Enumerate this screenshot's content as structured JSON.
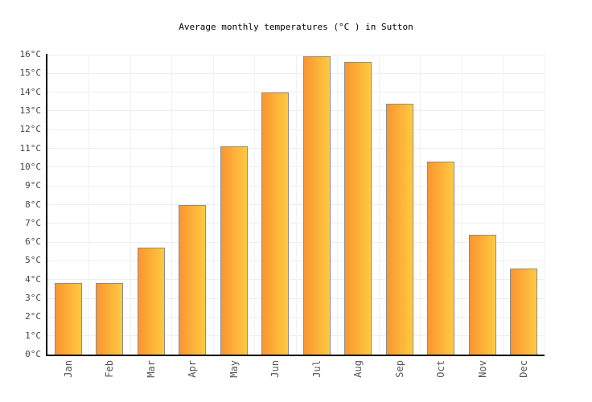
{
  "chart_data": {
    "type": "bar",
    "title": "Average monthly temperatures (°C ) in Sutton",
    "categories": [
      "Jan",
      "Feb",
      "Mar",
      "Apr",
      "May",
      "Jun",
      "Jul",
      "Aug",
      "Sep",
      "Oct",
      "Nov",
      "Dec"
    ],
    "values": [
      3.8,
      3.8,
      5.7,
      8.0,
      11.1,
      14.0,
      15.9,
      15.6,
      13.4,
      10.3,
      6.4,
      4.6
    ],
    "xlabel": "",
    "ylabel": "",
    "ylim": [
      0,
      16
    ],
    "y_tick_step": 1,
    "y_tick_suffix": "°C",
    "grid": true,
    "legend": false,
    "x_labels_rotated_degrees": -90
  },
  "style": {
    "background": "#ffffff",
    "title_color": "#000000",
    "bar_gradient_left": "#fa9531",
    "bar_gradient_right": "#ffca41",
    "bar_border": "#8c8c8c",
    "hgridline_color": "#ededed",
    "vgridline_color": "#f2f2f2",
    "axis_color": "#000000",
    "tick_label_color": "#444444",
    "month_label_color": "#555555"
  }
}
